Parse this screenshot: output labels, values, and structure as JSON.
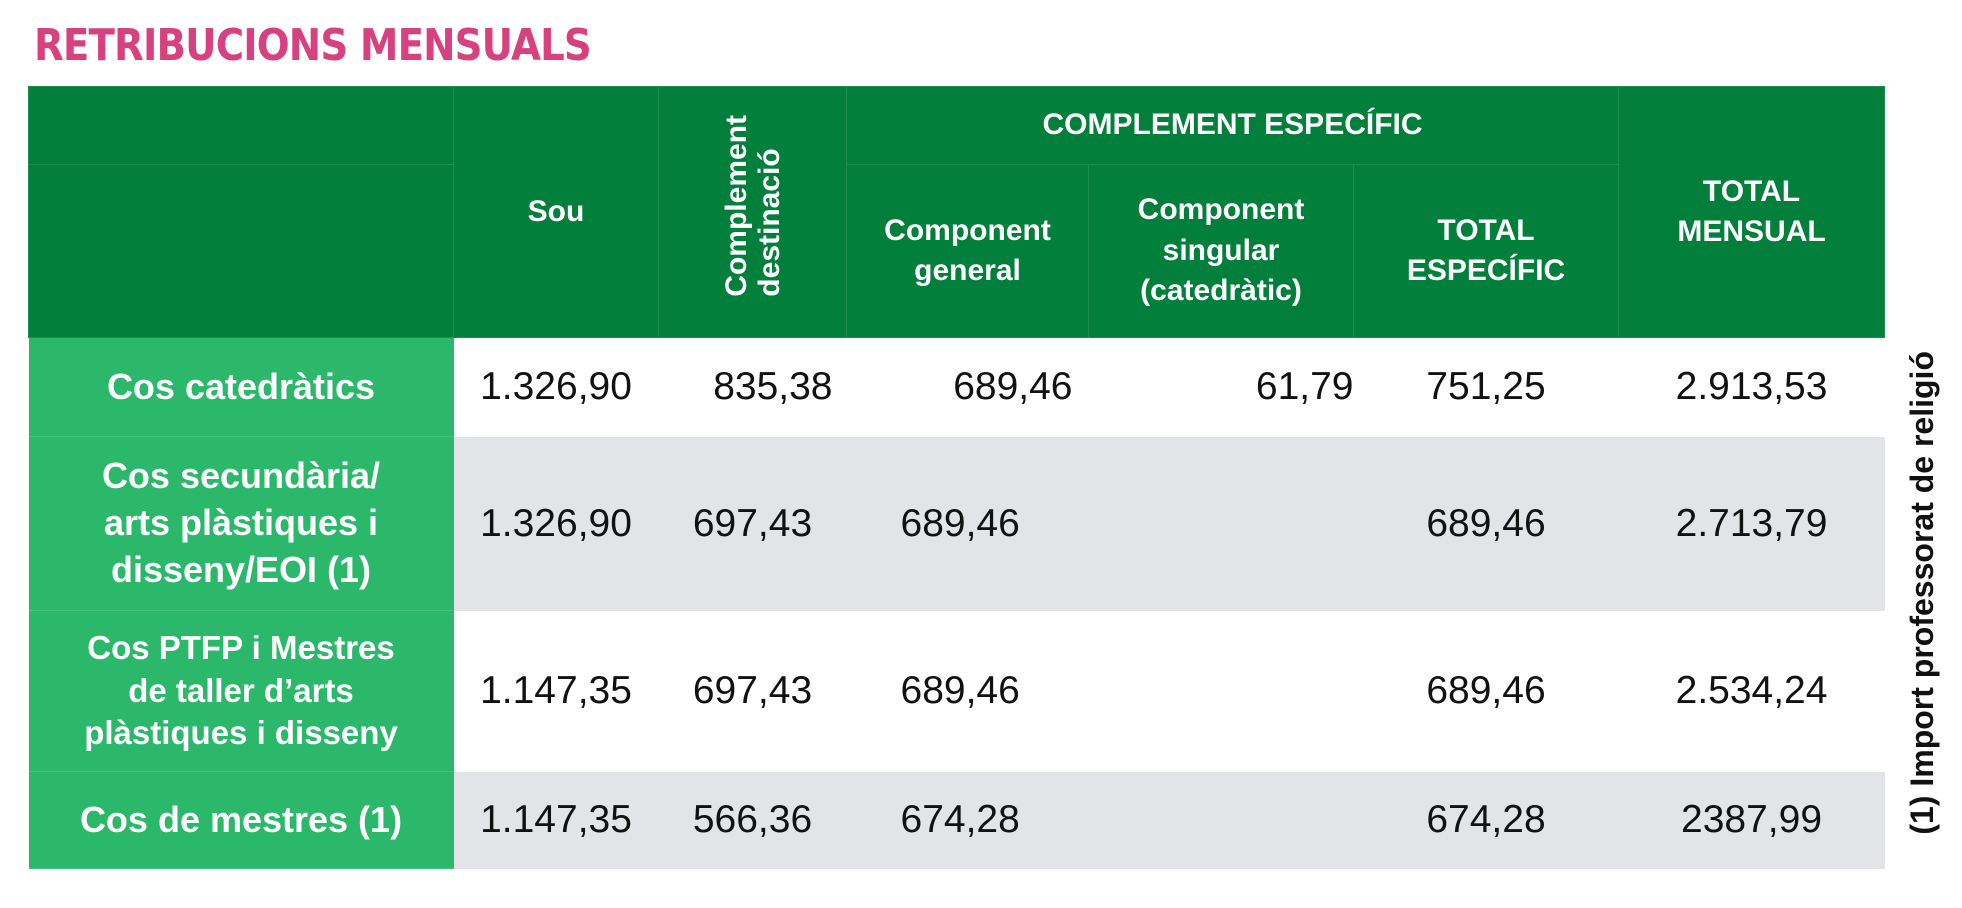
{
  "title": "RETRIBUCIONS MENSUALS",
  "headers": {
    "sou": "Sou",
    "complement_destinacio_line1": "Complement",
    "complement_destinacio_line2": "destinació",
    "complement_especific": "COMPLEMENT ESPECÍFIC",
    "component_general_line1": "Component",
    "component_general_line2": "general",
    "component_singular_line1": "Component",
    "component_singular_line2": "singular",
    "component_singular_line3": "(catedràtic)",
    "total_especific_line1": "TOTAL",
    "total_especific_line2": "ESPECÍFIC",
    "total_mensual_line1": "TOTAL",
    "total_mensual_line2": "MENSUAL"
  },
  "rows": [
    {
      "label_lines": [
        "Cos catedràtics"
      ],
      "sou": "1.326,90",
      "complement_destinacio": "835,38",
      "component_general": "689,46",
      "component_singular": "61,79",
      "total_especific": "751,25",
      "total_mensual": "2.913,53"
    },
    {
      "label_lines": [
        "Cos secundària/",
        "arts plàstiques i",
        "disseny/EOI (1)"
      ],
      "sou": "1.326,90",
      "complement_destinacio": "697,43",
      "component_general": "689,46",
      "component_singular": "",
      "total_especific": "689,46",
      "total_mensual": "2.713,79"
    },
    {
      "label_lines": [
        "Cos PTFP i Mestres",
        "de taller d’arts",
        "plàstiques i disseny"
      ],
      "sou": "1.147,35",
      "complement_destinacio": "697,43",
      "component_general": "689,46",
      "component_singular": "",
      "total_especific": "689,46",
      "total_mensual": "2.534,24"
    },
    {
      "label_lines": [
        "Cos de mestres (1)"
      ],
      "sou": "1.147,35",
      "complement_destinacio": "566,36",
      "component_general": "674,28",
      "component_singular": "",
      "total_especific": "674,28",
      "total_mensual": "2387,99"
    }
  ],
  "side_note": "(1) Import professorat de religió",
  "colors": {
    "title": "#d8417f",
    "header_bg": "#02803b",
    "row_label_bg": "#2cb86b",
    "row_alt_bg": "#e3e4e8"
  }
}
